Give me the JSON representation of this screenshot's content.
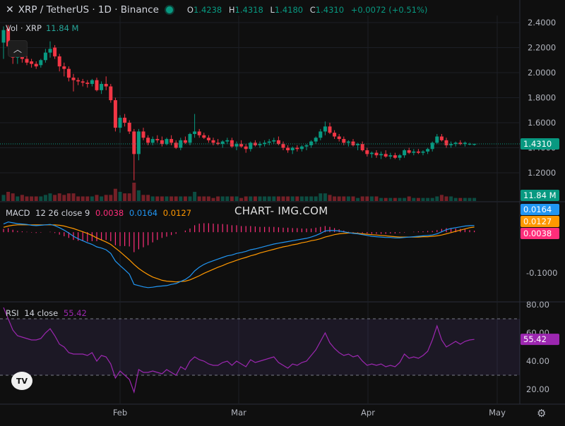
{
  "header": {
    "symbol": "XRP / TetherUS · 1D · Binance",
    "open_label": "O",
    "open": "1.4238",
    "high_label": "H",
    "high": "1.4318",
    "low_label": "L",
    "low": "1.4180",
    "close_label": "C",
    "close": "1.4310",
    "change": "+0.0072 (+0.51%)",
    "up_color": "#089981",
    "down_color": "#f23645"
  },
  "volume_legend": {
    "label": "Vol · XRP",
    "value": "11.84 M"
  },
  "macd_legend": {
    "label": "MACD",
    "params": "12 26 close 9",
    "hist": "0.0038",
    "macd": "0.0164",
    "signal": "0.0127"
  },
  "rsi_legend": {
    "label": "RSI",
    "params": "14 close",
    "value": "55.42"
  },
  "watermark": "CHART- IMG.COM",
  "badges": {
    "price": "1.4310",
    "volume": "11.84 M",
    "macd": "0.0164",
    "signal": "0.0127",
    "hist": "0.0038",
    "rsi": "55.42"
  },
  "price_ticks": [
    "2.4000",
    "2.2000",
    "2.0000",
    "1.8000",
    "1.6000",
    "1.4000",
    "1.2000"
  ],
  "macd_ticks": [
    "-0.1000"
  ],
  "rsi_ticks": [
    "80.00",
    "60.00",
    "40.00",
    "20.00"
  ],
  "x_ticks": [
    "Feb",
    "Mar",
    "Apr",
    "May"
  ],
  "chart_data": {
    "type": "candlestick",
    "price_range": [
      1.05,
      2.45
    ],
    "start": "2025-01-08",
    "candles": [
      [
        2.24,
        2.37,
        2.11,
        2.34
      ],
      [
        2.35,
        2.38,
        2.18,
        2.21
      ],
      [
        2.22,
        2.25,
        2.07,
        2.12
      ],
      [
        2.12,
        2.19,
        2.07,
        2.14
      ],
      [
        2.14,
        2.16,
        2.08,
        2.11
      ],
      [
        2.11,
        2.14,
        2.06,
        2.08
      ],
      [
        2.09,
        2.11,
        2.04,
        2.07
      ],
      [
        2.07,
        2.09,
        2.03,
        2.05
      ],
      [
        2.06,
        2.11,
        2.04,
        2.1
      ],
      [
        2.1,
        2.19,
        2.08,
        2.16
      ],
      [
        2.16,
        2.25,
        2.12,
        2.19
      ],
      [
        2.2,
        2.22,
        2.11,
        2.13
      ],
      [
        2.13,
        2.15,
        2.01,
        2.05
      ],
      [
        2.05,
        2.08,
        1.97,
        2.03
      ],
      [
        2.03,
        2.05,
        1.93,
        1.96
      ],
      [
        1.96,
        1.99,
        1.85,
        1.94
      ],
      [
        1.94,
        1.96,
        1.9,
        1.93
      ],
      [
        1.93,
        1.95,
        1.89,
        1.92
      ],
      [
        1.92,
        1.94,
        1.88,
        1.91
      ],
      [
        1.91,
        1.95,
        1.89,
        1.94
      ],
      [
        1.94,
        1.96,
        1.85,
        1.86
      ],
      [
        1.86,
        1.93,
        1.83,
        1.91
      ],
      [
        1.91,
        1.97,
        1.86,
        1.89
      ],
      [
        1.89,
        1.91,
        1.76,
        1.78
      ],
      [
        1.78,
        1.8,
        1.53,
        1.56
      ],
      [
        1.56,
        1.66,
        1.52,
        1.64
      ],
      [
        1.64,
        1.67,
        1.57,
        1.6
      ],
      [
        1.6,
        1.62,
        1.51,
        1.53
      ],
      [
        1.53,
        1.55,
        1.14,
        1.35
      ],
      [
        1.35,
        1.55,
        1.3,
        1.53
      ],
      [
        1.53,
        1.56,
        1.46,
        1.48
      ],
      [
        1.48,
        1.5,
        1.42,
        1.44
      ],
      [
        1.44,
        1.49,
        1.42,
        1.47
      ],
      [
        1.47,
        1.5,
        1.44,
        1.46
      ],
      [
        1.46,
        1.49,
        1.41,
        1.43
      ],
      [
        1.43,
        1.48,
        1.42,
        1.47
      ],
      [
        1.47,
        1.5,
        1.42,
        1.44
      ],
      [
        1.44,
        1.46,
        1.39,
        1.4
      ],
      [
        1.4,
        1.48,
        1.38,
        1.46
      ],
      [
        1.46,
        1.49,
        1.43,
        1.44
      ],
      [
        1.44,
        1.52,
        1.42,
        1.51
      ],
      [
        1.51,
        1.67,
        1.48,
        1.53
      ],
      [
        1.53,
        1.55,
        1.48,
        1.5
      ],
      [
        1.5,
        1.52,
        1.47,
        1.48
      ],
      [
        1.48,
        1.5,
        1.44,
        1.46
      ],
      [
        1.46,
        1.48,
        1.42,
        1.44
      ],
      [
        1.44,
        1.47,
        1.42,
        1.43
      ],
      [
        1.43,
        1.46,
        1.4,
        1.45
      ],
      [
        1.45,
        1.48,
        1.43,
        1.46
      ],
      [
        1.46,
        1.48,
        1.4,
        1.41
      ],
      [
        1.41,
        1.45,
        1.38,
        1.43
      ],
      [
        1.43,
        1.46,
        1.4,
        1.41
      ],
      [
        1.41,
        1.43,
        1.36,
        1.39
      ],
      [
        1.39,
        1.45,
        1.37,
        1.44
      ],
      [
        1.44,
        1.46,
        1.41,
        1.42
      ],
      [
        1.42,
        1.45,
        1.4,
        1.43
      ],
      [
        1.43,
        1.46,
        1.41,
        1.44
      ],
      [
        1.44,
        1.47,
        1.42,
        1.45
      ],
      [
        1.45,
        1.48,
        1.43,
        1.46
      ],
      [
        1.46,
        1.49,
        1.42,
        1.43
      ],
      [
        1.43,
        1.45,
        1.38,
        1.4
      ],
      [
        1.4,
        1.42,
        1.36,
        1.38
      ],
      [
        1.38,
        1.41,
        1.35,
        1.4
      ],
      [
        1.4,
        1.42,
        1.37,
        1.39
      ],
      [
        1.39,
        1.42,
        1.37,
        1.41
      ],
      [
        1.41,
        1.43,
        1.38,
        1.42
      ],
      [
        1.42,
        1.46,
        1.4,
        1.45
      ],
      [
        1.45,
        1.49,
        1.43,
        1.48
      ],
      [
        1.48,
        1.55,
        1.46,
        1.53
      ],
      [
        1.53,
        1.61,
        1.5,
        1.57
      ],
      [
        1.57,
        1.6,
        1.51,
        1.52
      ],
      [
        1.52,
        1.54,
        1.47,
        1.49
      ],
      [
        1.49,
        1.51,
        1.45,
        1.47
      ],
      [
        1.47,
        1.49,
        1.42,
        1.44
      ],
      [
        1.44,
        1.46,
        1.41,
        1.45
      ],
      [
        1.45,
        1.47,
        1.41,
        1.42
      ],
      [
        1.42,
        1.44,
        1.38,
        1.43
      ],
      [
        1.43,
        1.45,
        1.37,
        1.38
      ],
      [
        1.38,
        1.4,
        1.33,
        1.35
      ],
      [
        1.35,
        1.37,
        1.32,
        1.36
      ],
      [
        1.36,
        1.38,
        1.32,
        1.34
      ],
      [
        1.34,
        1.37,
        1.31,
        1.35
      ],
      [
        1.35,
        1.38,
        1.32,
        1.33
      ],
      [
        1.33,
        1.36,
        1.31,
        1.34
      ],
      [
        1.34,
        1.36,
        1.31,
        1.32
      ],
      [
        1.32,
        1.35,
        1.3,
        1.34
      ],
      [
        1.34,
        1.39,
        1.32,
        1.38
      ],
      [
        1.38,
        1.4,
        1.35,
        1.36
      ],
      [
        1.36,
        1.39,
        1.34,
        1.37
      ],
      [
        1.37,
        1.39,
        1.35,
        1.36
      ],
      [
        1.36,
        1.38,
        1.34,
        1.37
      ],
      [
        1.37,
        1.4,
        1.35,
        1.39
      ],
      [
        1.39,
        1.45,
        1.37,
        1.44
      ],
      [
        1.44,
        1.51,
        1.43,
        1.49
      ],
      [
        1.49,
        1.51,
        1.45,
        1.46
      ],
      [
        1.46,
        1.48,
        1.4,
        1.42
      ],
      [
        1.42,
        1.45,
        1.4,
        1.43
      ],
      [
        1.43,
        1.45,
        1.41,
        1.44
      ],
      [
        1.44,
        1.46,
        1.42,
        1.43
      ],
      [
        1.43,
        1.45,
        1.41,
        1.44
      ],
      [
        1.43,
        1.44,
        1.42,
        1.431
      ],
      [
        1.4238,
        1.4318,
        1.418,
        1.431
      ]
    ],
    "volume": [
      4,
      6,
      5,
      3,
      4,
      3,
      3,
      3,
      3,
      4,
      5,
      4,
      5,
      4,
      5,
      5,
      3,
      3,
      3,
      3,
      4,
      3,
      4,
      4,
      8,
      6,
      5,
      5,
      12,
      7,
      4,
      4,
      3,
      3,
      3,
      3,
      3,
      3,
      3,
      3,
      3,
      6,
      3,
      3,
      3,
      2,
      3,
      3,
      3,
      3,
      3,
      2,
      3,
      3,
      3,
      3,
      3,
      3,
      3,
      3,
      3,
      3,
      3,
      3,
      3,
      3,
      3,
      3,
      5,
      5,
      4,
      3,
      3,
      3,
      3,
      3,
      2,
      3,
      3,
      3,
      3,
      2,
      2,
      2,
      2,
      2,
      2,
      3,
      2,
      2,
      2,
      2,
      2,
      3,
      4,
      3,
      3,
      2,
      2,
      2,
      2,
      2
    ],
    "macd": [
      0.02,
      0.025,
      0.023,
      0.021,
      0.02,
      0.019,
      0.017,
      0.016,
      0.017,
      0.018,
      0.019,
      0.016,
      0.011,
      0.005,
      -0.002,
      -0.01,
      -0.016,
      -0.021,
      -0.026,
      -0.03,
      -0.036,
      -0.039,
      -0.043,
      -0.052,
      -0.071,
      -0.082,
      -0.092,
      -0.103,
      -0.128,
      -0.131,
      -0.134,
      -0.136,
      -0.135,
      -0.133,
      -0.132,
      -0.131,
      -0.128,
      -0.126,
      -0.121,
      -0.116,
      -0.108,
      -0.095,
      -0.086,
      -0.079,
      -0.074,
      -0.07,
      -0.066,
      -0.062,
      -0.058,
      -0.056,
      -0.052,
      -0.05,
      -0.047,
      -0.043,
      -0.041,
      -0.038,
      -0.035,
      -0.032,
      -0.029,
      -0.027,
      -0.025,
      -0.023,
      -0.021,
      -0.019,
      -0.017,
      -0.015,
      -0.012,
      -0.008,
      -0.003,
      0.003,
      0.004,
      0.004,
      0.003,
      0.001,
      -0.001,
      -0.003,
      -0.004,
      -0.006,
      -0.008,
      -0.01,
      -0.011,
      -0.012,
      -0.013,
      -0.013,
      -0.014,
      -0.014,
      -0.013,
      -0.012,
      -0.011,
      -0.01,
      -0.009,
      -0.008,
      -0.007,
      -0.004,
      0.001,
      0.006,
      0.009,
      0.011,
      0.013,
      0.015,
      0.016,
      0.0164
    ],
    "signal": [
      0.012,
      0.015,
      0.017,
      0.018,
      0.018,
      0.018,
      0.018,
      0.018,
      0.018,
      0.018,
      0.018,
      0.018,
      0.017,
      0.015,
      0.012,
      0.009,
      0.005,
      0.001,
      -0.003,
      -0.008,
      -0.014,
      -0.019,
      -0.024,
      -0.03,
      -0.039,
      -0.048,
      -0.058,
      -0.068,
      -0.079,
      -0.089,
      -0.097,
      -0.104,
      -0.11,
      -0.114,
      -0.118,
      -0.12,
      -0.121,
      -0.122,
      -0.121,
      -0.12,
      -0.117,
      -0.112,
      -0.107,
      -0.101,
      -0.096,
      -0.091,
      -0.086,
      -0.082,
      -0.077,
      -0.073,
      -0.069,
      -0.065,
      -0.062,
      -0.058,
      -0.055,
      -0.051,
      -0.048,
      -0.045,
      -0.042,
      -0.039,
      -0.036,
      -0.034,
      -0.031,
      -0.029,
      -0.026,
      -0.024,
      -0.021,
      -0.019,
      -0.016,
      -0.012,
      -0.009,
      -0.006,
      -0.004,
      -0.003,
      -0.002,
      -0.002,
      -0.003,
      -0.004,
      -0.005,
      -0.006,
      -0.007,
      -0.008,
      -0.009,
      -0.01,
      -0.011,
      -0.012,
      -0.012,
      -0.012,
      -0.012,
      -0.012,
      -0.011,
      -0.011,
      -0.01,
      -0.009,
      -0.007,
      -0.004,
      -0.001,
      0.002,
      0.005,
      0.008,
      0.011,
      0.0127
    ],
    "rsi": [
      78,
      70,
      62,
      58,
      57,
      56,
      55,
      55,
      56,
      60,
      63,
      58,
      52,
      50,
      46,
      45,
      45,
      45,
      44,
      46,
      40,
      44,
      43,
      38,
      28,
      33,
      30,
      27,
      18,
      34,
      32,
      32,
      33,
      32,
      31,
      34,
      32,
      30,
      36,
      34,
      40,
      43,
      41,
      40,
      38,
      37,
      37,
      39,
      40,
      37,
      40,
      38,
      36,
      41,
      39,
      40,
      41,
      42,
      43,
      39,
      37,
      35,
      38,
      37,
      39,
      40,
      44,
      48,
      54,
      60,
      53,
      49,
      46,
      44,
      45,
      43,
      44,
      40,
      37,
      38,
      37,
      38,
      36,
      37,
      36,
      39,
      45,
      42,
      43,
      42,
      44,
      47,
      55,
      65,
      55,
      50,
      52,
      54,
      52,
      54,
      55,
      55.42
    ]
  }
}
